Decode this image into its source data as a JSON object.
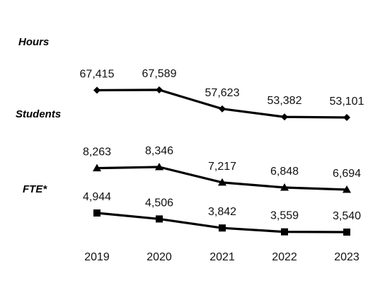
{
  "chart_data": {
    "type": "line",
    "categories": [
      "2019",
      "2020",
      "2021",
      "2022",
      "2023"
    ],
    "series": [
      {
        "name": "Hours",
        "marker": "diamond",
        "values": [
          67415,
          67589,
          57623,
          53382,
          53101
        ],
        "labels": [
          "67,415",
          "67,589",
          "57,623",
          "53,382",
          "53,101"
        ]
      },
      {
        "name": "Students",
        "marker": "triangle",
        "values": [
          8263,
          8346,
          7217,
          6848,
          6694
        ],
        "labels": [
          "8,263",
          "8,346",
          "7,217",
          "6,848",
          "6,694"
        ]
      },
      {
        "name": "FTE*",
        "marker": "square",
        "values": [
          4944,
          4506,
          3842,
          3559,
          3540
        ],
        "labels": [
          "4,944",
          "4,506",
          "3,842",
          "3,559",
          "3,540"
        ]
      }
    ],
    "grid": false,
    "legend": "none",
    "line_color": "#000000"
  }
}
